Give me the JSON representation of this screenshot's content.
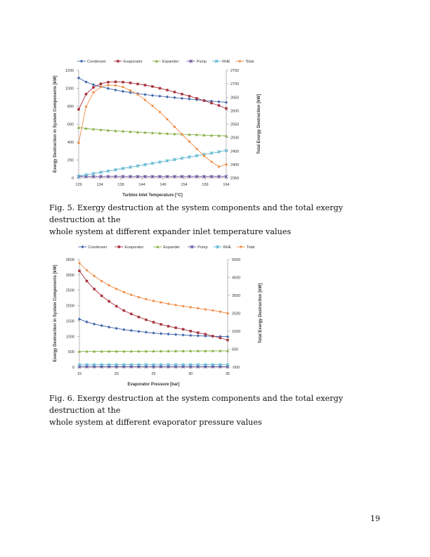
{
  "chart_data": [
    {
      "type": "line",
      "xlabel": "Turbine Inlet Temperature [°C]",
      "ylabel": "Exergy Destruction in System Components [kW]",
      "y2label": "Total Exergy Destruction [kW]",
      "xlim": [
        129,
        164
      ],
      "ylim": [
        0,
        1200
      ],
      "y2lim": [
        2350,
        2750
      ],
      "xticks": [
        129,
        134,
        139,
        144,
        149,
        154,
        159,
        164
      ],
      "yticks": [
        0,
        200,
        400,
        600,
        800,
        1000,
        1200
      ],
      "y2ticks": [
        2350,
        2400,
        2450,
        2500,
        2550,
        2600,
        2650,
        2700,
        2750
      ],
      "legend": "top",
      "grid": false,
      "x": [
        129,
        130.75,
        132.5,
        134.25,
        136,
        137.75,
        139.5,
        141.25,
        143,
        144.75,
        146.5,
        148.25,
        150,
        151.75,
        153.5,
        155.25,
        157,
        158.75,
        160.5,
        162.25,
        164
      ],
      "series": [
        {
          "name": "Condenser",
          "color": "#3f66ad",
          "axis": "left",
          "marker": "diamond",
          "values": [
            1115,
            1070,
            1040,
            1018,
            998,
            980,
            965,
            952,
            940,
            930,
            920,
            912,
            904,
            896,
            888,
            880,
            872,
            864,
            856,
            850,
            843
          ]
        },
        {
          "name": "Evaporator",
          "color": "#a8343f",
          "axis": "left",
          "marker": "square",
          "values": [
            765,
            935,
            1010,
            1050,
            1068,
            1072,
            1068,
            1060,
            1048,
            1035,
            1020,
            1000,
            980,
            958,
            935,
            912,
            888,
            862,
            835,
            808,
            775
          ]
        },
        {
          "name": "Expander",
          "color": "#86b043",
          "axis": "left",
          "marker": "triangle",
          "values": [
            562,
            552,
            544,
            537,
            531,
            526,
            521,
            516,
            511,
            507,
            503,
            499,
            495,
            491,
            487,
            484,
            481,
            478,
            475,
            472,
            470
          ]
        },
        {
          "name": "Pump",
          "color": "#6a4f9a",
          "axis": "left",
          "marker": "x",
          "values": [
            16,
            16,
            16,
            16,
            16,
            16,
            16,
            16,
            16,
            16,
            16,
            16,
            16,
            16,
            16,
            16,
            16,
            16,
            16,
            16,
            16
          ]
        },
        {
          "name": "RHE",
          "color": "#56b4d0",
          "axis": "left",
          "marker": "star",
          "values": [
            20,
            34,
            49,
            63,
            77,
            91,
            106,
            120,
            134,
            148,
            163,
            177,
            191,
            205,
            220,
            234,
            248,
            262,
            277,
            291,
            305
          ]
        },
        {
          "name": "Total",
          "color": "#f08c45",
          "axis": "right",
          "marker": "circle",
          "values": [
            2480,
            2615,
            2668,
            2688,
            2695,
            2694,
            2688,
            2675,
            2660,
            2640,
            2618,
            2595,
            2568,
            2540,
            2512,
            2485,
            2458,
            2432,
            2410,
            2392,
            2400
          ]
        }
      ]
    },
    {
      "type": "line",
      "xlabel": "Evaporator Pressure [bar]",
      "ylabel": "Exergy Destruction in System Components [kW]",
      "y2label": "Total Exergy Destruction [kW]",
      "xlim": [
        15,
        35
      ],
      "ylim": [
        0,
        3500
      ],
      "y2lim": [
        -500,
        5500
      ],
      "xticks": [
        15,
        20,
        25,
        30,
        35
      ],
      "yticks": [
        0,
        500,
        1000,
        1500,
        2000,
        2500,
        3000,
        3500
      ],
      "y2ticks": [
        -500,
        500,
        1500,
        2500,
        3500,
        4500,
        5500
      ],
      "legend": "top",
      "grid": false,
      "x": [
        15,
        16,
        17,
        18,
        19,
        20,
        21,
        22,
        23,
        24,
        25,
        26,
        27,
        28,
        29,
        30,
        31,
        32,
        33,
        34,
        35
      ],
      "series": [
        {
          "name": "Condenser",
          "color": "#3f66ad",
          "axis": "left",
          "marker": "diamond",
          "values": [
            1560,
            1470,
            1400,
            1350,
            1300,
            1260,
            1220,
            1190,
            1160,
            1135,
            1110,
            1090,
            1075,
            1060,
            1045,
            1030,
            1020,
            1010,
            1000,
            995,
            990
          ]
        },
        {
          "name": "Evaporator",
          "color": "#a8343f",
          "axis": "left",
          "marker": "square",
          "values": [
            3130,
            2800,
            2540,
            2320,
            2140,
            1980,
            1840,
            1730,
            1630,
            1540,
            1460,
            1390,
            1330,
            1280,
            1230,
            1170,
            1120,
            1070,
            1010,
            950,
            880
          ]
        },
        {
          "name": "Expander",
          "color": "#86b043",
          "axis": "left",
          "marker": "triangle",
          "values": [
            510,
            511,
            512,
            513,
            514,
            515,
            516,
            517,
            518,
            519,
            520,
            521,
            522,
            523,
            524,
            525,
            526,
            527,
            528,
            529,
            530
          ]
        },
        {
          "name": "Pump",
          "color": "#6a4f9a",
          "axis": "left",
          "marker": "x",
          "values": [
            12,
            12,
            12,
            12,
            12,
            12,
            12,
            12,
            12,
            12,
            12,
            12,
            12,
            12,
            12,
            12,
            12,
            12,
            12,
            12,
            12
          ]
        },
        {
          "name": "RHE",
          "color": "#56b4d0",
          "axis": "left",
          "marker": "star",
          "values": [
            75,
            75,
            75,
            75,
            75,
            75,
            75,
            75,
            75,
            75,
            75,
            75,
            75,
            75,
            75,
            75,
            75,
            75,
            75,
            75,
            75
          ]
        },
        {
          "name": "Total",
          "color": "#f08c45",
          "axis": "right",
          "marker": "circle",
          "values": [
            5300,
            4900,
            4580,
            4300,
            4060,
            3860,
            3680,
            3530,
            3400,
            3290,
            3190,
            3110,
            3030,
            2960,
            2900,
            2840,
            2780,
            2720,
            2660,
            2590,
            2500
          ]
        }
      ]
    }
  ],
  "captions": {
    "fig5_line1": "Fig. 5. Exergy destruction at the system components and the total exergy destruction at the",
    "fig5_line2": "whole system at different expander inlet temperature values",
    "fig6_line1": "Fig. 6. Exergy destruction at the system components and the total exergy destruction at the",
    "fig6_line2": "whole system at different evaporator pressure values"
  },
  "page_number": "19"
}
